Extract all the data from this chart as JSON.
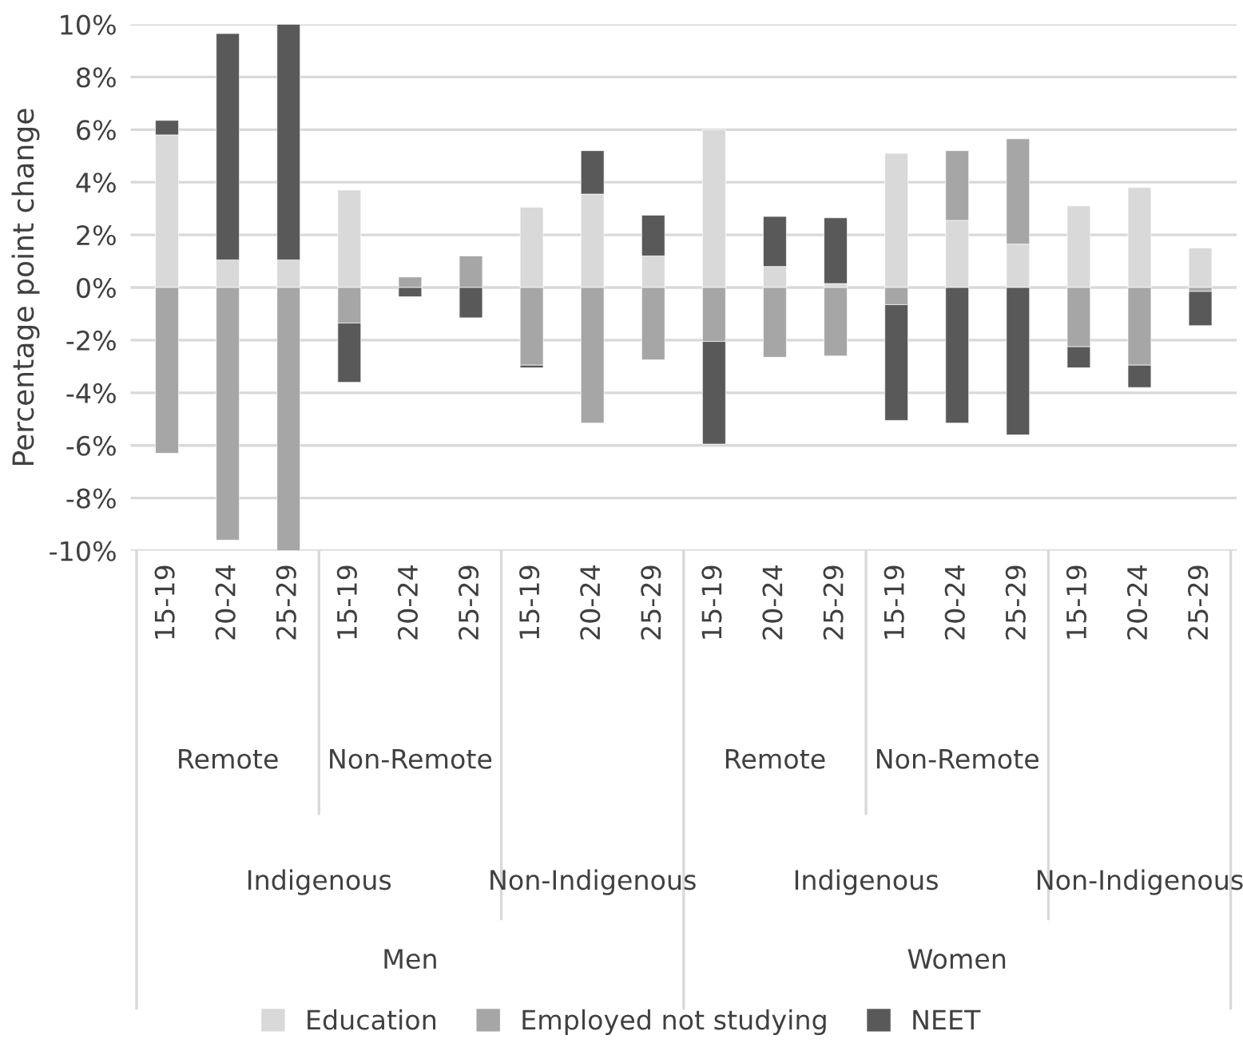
{
  "chart_data": {
    "type": "bar",
    "stacked": true,
    "ylabel": "Percentage point change",
    "categories": [
      "15-19",
      "20-24",
      "25-29",
      "15-19",
      "20-24",
      "25-29",
      "15-19",
      "20-24",
      "25-29",
      "15-19",
      "20-24",
      "25-29",
      "15-19",
      "20-24",
      "25-29",
      "15-19",
      "20-24",
      "25-29"
    ],
    "series": [
      {
        "name": "Education",
        "color": "#d9d9d9",
        "values": [
          5.8,
          1.05,
          1.05,
          3.7,
          0,
          0,
          3.05,
          3.55,
          1.2,
          6.0,
          0.8,
          0.15,
          5.1,
          2.55,
          1.65,
          3.1,
          3.8,
          1.5
        ]
      },
      {
        "name": "Employed not studying",
        "color": "#a6a6a6",
        "values": [
          -6.3,
          -9.6,
          -10.0,
          -1.35,
          0.4,
          1.2,
          -2.95,
          -5.15,
          -2.75,
          -2.05,
          -2.65,
          -2.6,
          -0.65,
          2.65,
          4.0,
          -2.25,
          -2.95,
          -0.15
        ]
      },
      {
        "name": "NEET",
        "color": "#595959",
        "values": [
          0.55,
          8.6,
          8.95,
          -2.25,
          -0.35,
          -1.15,
          -0.1,
          1.65,
          1.55,
          -3.9,
          1.9,
          2.5,
          -4.4,
          -5.15,
          -5.6,
          -0.8,
          -0.85,
          -1.3
        ]
      }
    ],
    "annotations": [
      "Remote",
      "Non-Remote",
      "Remote",
      "Non-Remote",
      "Indigenous",
      "Non-Indigenous",
      "Indigenous",
      "Non-Indigenous",
      "Men",
      "Women"
    ],
    "ylim": [
      -10,
      10
    ],
    "yticks": [
      {
        "value": -10,
        "label": "-10%"
      },
      {
        "value": -8,
        "label": "-8%"
      },
      {
        "value": -6,
        "label": "-6%"
      },
      {
        "value": -4,
        "label": "-4%"
      },
      {
        "value": -2,
        "label": "-2%"
      },
      {
        "value": 0,
        "label": "0%"
      },
      {
        "value": 2,
        "label": "2%"
      },
      {
        "value": 4,
        "label": "4%"
      },
      {
        "value": 6,
        "label": "6%"
      },
      {
        "value": 8,
        "label": "8%"
      },
      {
        "value": 10,
        "label": "10%"
      }
    ],
    "grid": "y",
    "legend": "bottom"
  }
}
